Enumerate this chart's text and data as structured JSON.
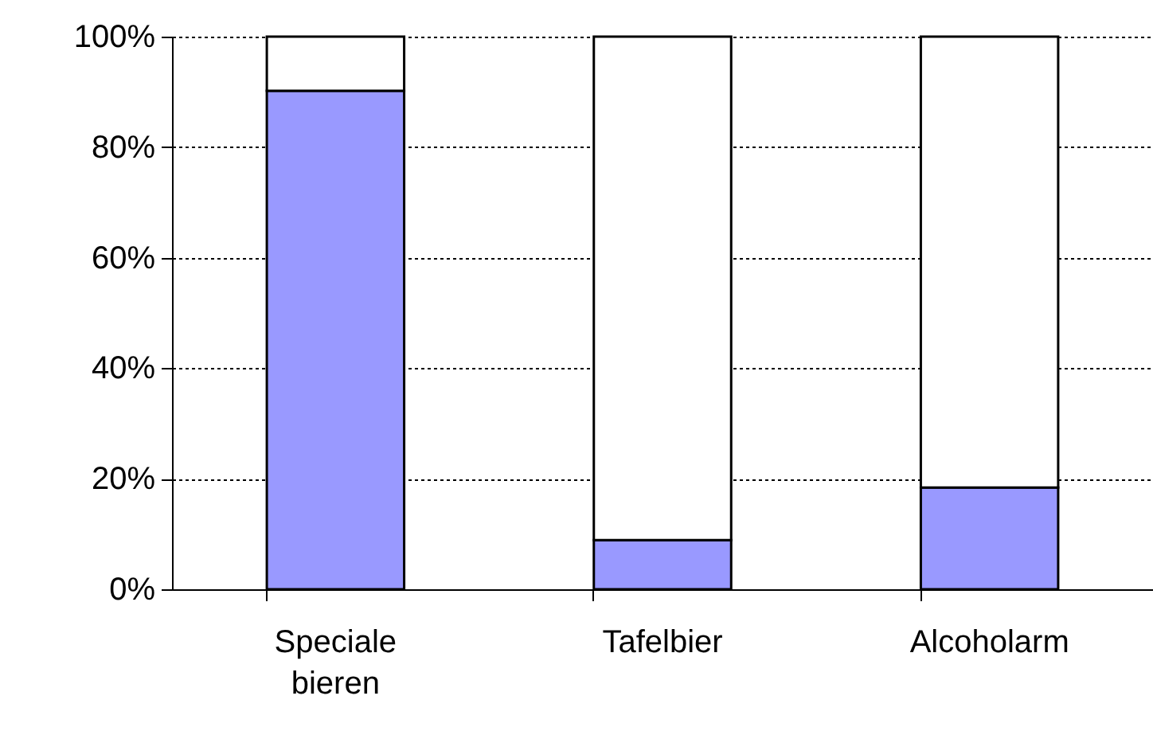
{
  "chart_data": {
    "type": "bar",
    "stacked": true,
    "categories": [
      "Speciale bieren",
      "Tafelbier",
      "Alcoholarm"
    ],
    "series": [
      {
        "color": "#9999ff",
        "values": [
          90.2,
          8.9,
          18.4
        ]
      },
      {
        "color": "#ffffff",
        "values": [
          9.8,
          91.1,
          81.6
        ]
      }
    ],
    "ylim": [
      0,
      100
    ],
    "yticks": [
      {
        "value": 0,
        "label": "0%"
      },
      {
        "value": 20,
        "label": "20%"
      },
      {
        "value": 40,
        "label": "40%"
      },
      {
        "value": 60,
        "label": "60%"
      },
      {
        "value": 80,
        "label": "80%"
      },
      {
        "value": 100,
        "label": "100%"
      }
    ],
    "grid": "y"
  }
}
